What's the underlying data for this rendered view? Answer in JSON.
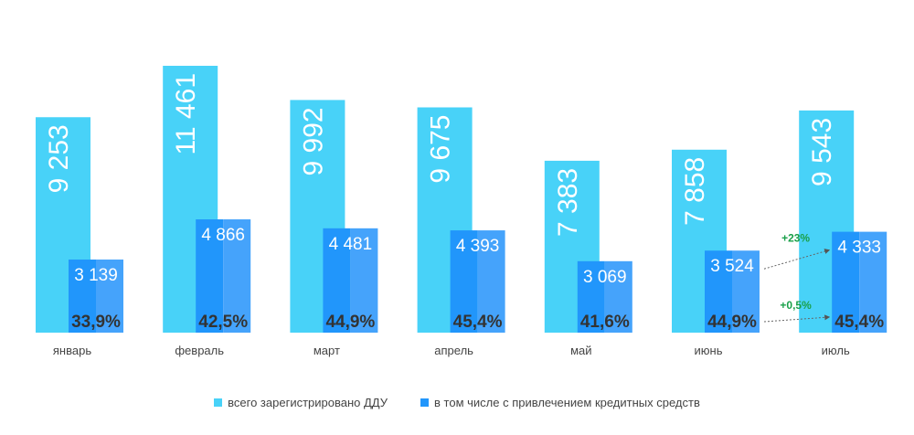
{
  "chart_data": {
    "type": "bar",
    "categories": [
      "январь",
      "февраль",
      "март",
      "апрель",
      "май",
      "июнь",
      "июль"
    ],
    "series": [
      {
        "name": "всего зарегистрировано ДДУ",
        "values": [
          9253,
          11461,
          9992,
          9675,
          7383,
          7858,
          9543
        ],
        "labels": [
          "9 253",
          "11 461",
          "9 992",
          "9 675",
          "7 383",
          "7 858",
          "9 543"
        ],
        "color": "#48d2f8"
      },
      {
        "name": "в том числе с привлечением кредитных средств",
        "values": [
          3139,
          4866,
          4481,
          4393,
          3069,
          3524,
          4333
        ],
        "labels": [
          "3 139",
          "4 866",
          "4 481",
          "4 393",
          "3 069",
          "3 524",
          "4 333"
        ],
        "share_labels": [
          "33,9%",
          "42,5%",
          "44,9%",
          "45,4%",
          "41,6%",
          "44,9%",
          "45,4%"
        ],
        "color": "#2196fb",
        "color_light": "#45a3fb"
      }
    ],
    "annotations": [
      {
        "text": "+23%",
        "from": "июнь",
        "to": "июль",
        "target": "value"
      },
      {
        "text": "+0,5%",
        "from": "июнь",
        "to": "июль",
        "target": "share"
      }
    ],
    "annotation_color": "#1aa04a",
    "ylim": [
      0,
      12000
    ],
    "grid": false,
    "legend_position": "bottom"
  }
}
